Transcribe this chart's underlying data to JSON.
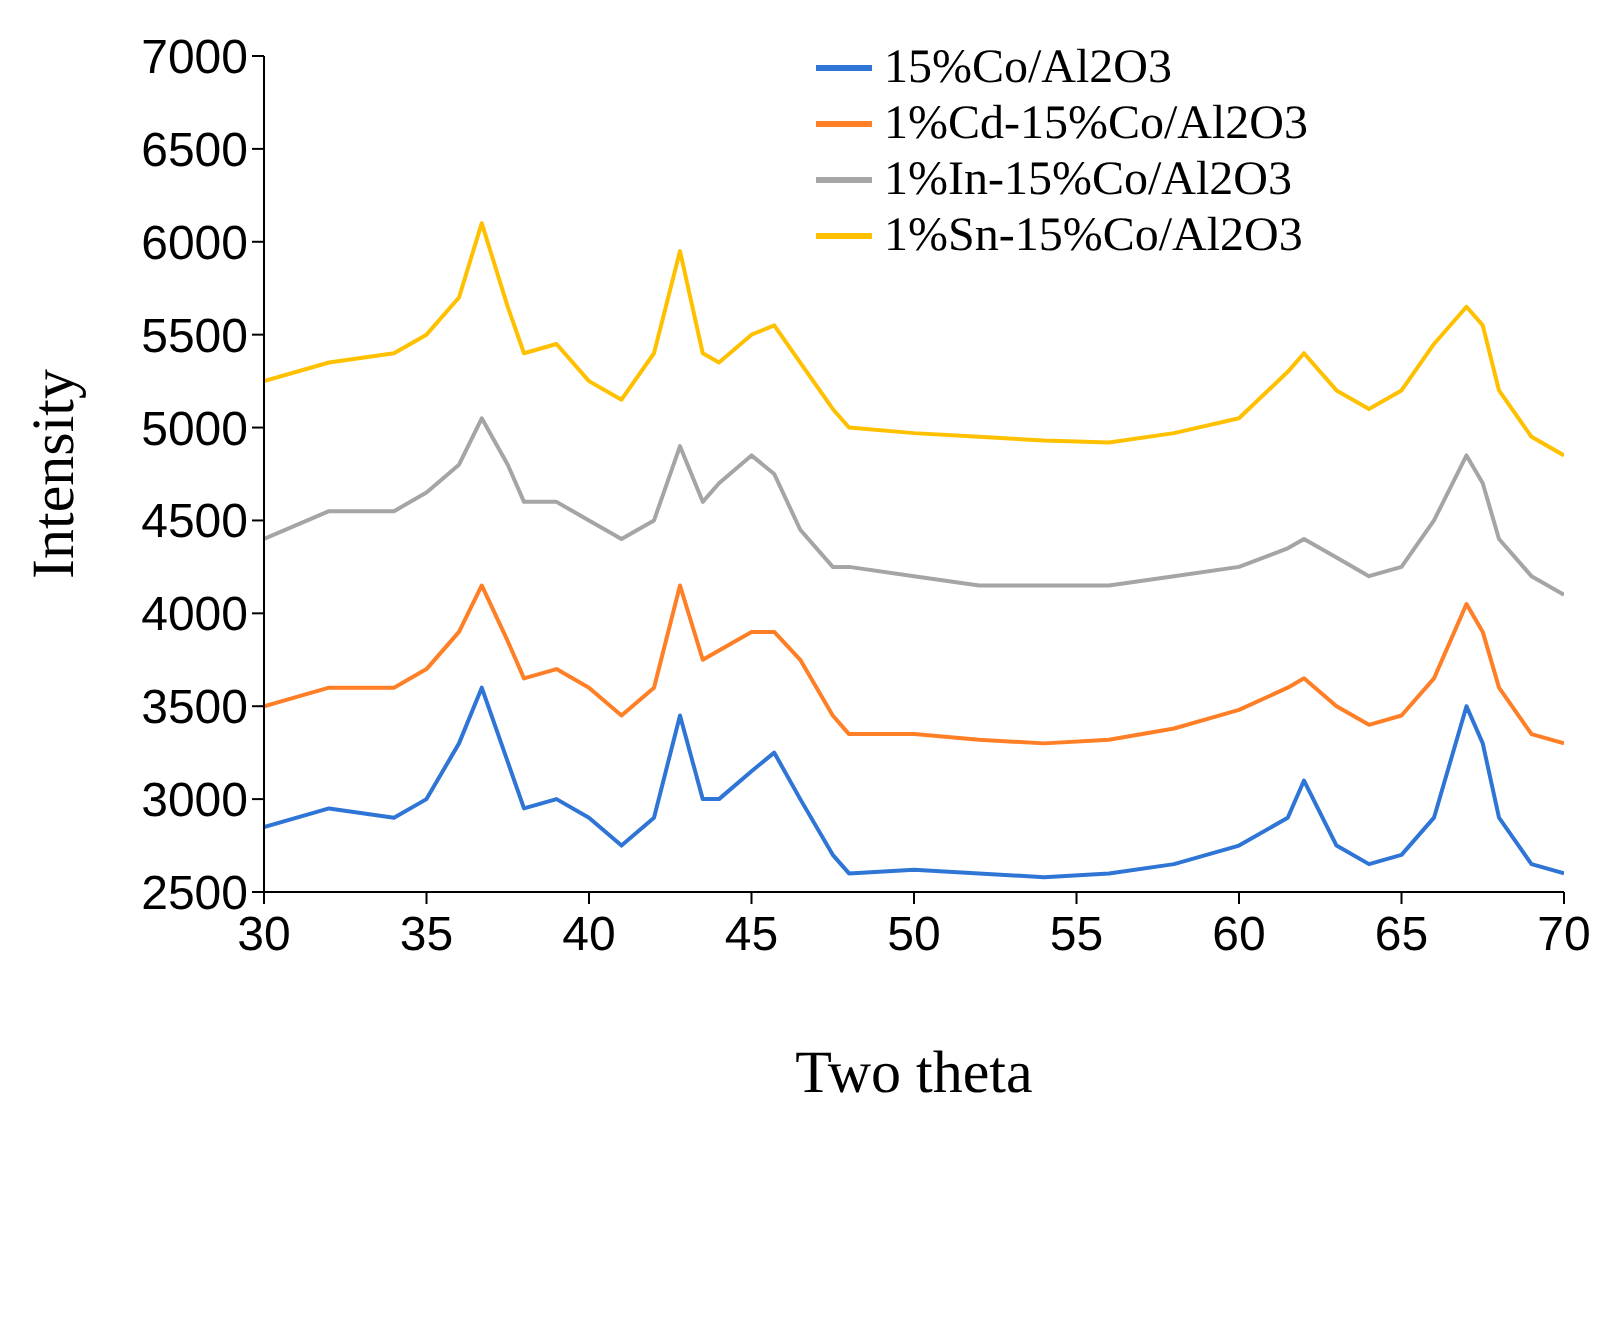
{
  "chart_data": {
    "type": "line",
    "xlabel": "Two theta",
    "ylabel": "Intensity",
    "x": [
      30,
      32,
      34,
      35,
      36,
      36.7,
      37.5,
      38,
      39,
      40,
      41,
      42,
      42.8,
      43.5,
      44,
      45,
      45.7,
      46.5,
      47.5,
      48,
      50,
      52,
      54,
      56,
      58,
      60,
      61.5,
      62,
      63,
      64,
      65,
      66,
      67,
      67.5,
      68,
      69,
      70
    ],
    "series": [
      {
        "name": "15%Co/Al2O3",
        "color": "#2e75d6",
        "values": [
          2850,
          2950,
          2900,
          3000,
          3300,
          3600,
          3200,
          2950,
          3000,
          2900,
          2750,
          2900,
          3450,
          3000,
          3000,
          3150,
          3250,
          3000,
          2700,
          2600,
          2620,
          2600,
          2580,
          2600,
          2650,
          2750,
          2900,
          3100,
          2750,
          2650,
          2700,
          2900,
          3500,
          3300,
          2900,
          2650,
          2600
        ]
      },
      {
        "name": "1%Cd-15%Co/Al2O3",
        "color": "#ff7f27",
        "values": [
          3500,
          3600,
          3600,
          3700,
          3900,
          4150,
          3850,
          3650,
          3700,
          3600,
          3450,
          3600,
          4150,
          3750,
          3800,
          3900,
          3900,
          3750,
          3450,
          3350,
          3350,
          3320,
          3300,
          3320,
          3380,
          3480,
          3600,
          3650,
          3500,
          3400,
          3450,
          3650,
          4050,
          3900,
          3600,
          3350,
          3300
        ]
      },
      {
        "name": "1%In-15%Co/Al2O3",
        "color": "#a5a5a5",
        "values": [
          4400,
          4550,
          4550,
          4650,
          4800,
          5050,
          4800,
          4600,
          4600,
          4500,
          4400,
          4500,
          4900,
          4600,
          4700,
          4850,
          4750,
          4450,
          4250,
          4250,
          4200,
          4150,
          4150,
          4150,
          4200,
          4250,
          4350,
          4400,
          4300,
          4200,
          4250,
          4500,
          4850,
          4700,
          4400,
          4200,
          4100
        ]
      },
      {
        "name": "1%Sn-15%Co/Al2O3",
        "color": "#ffc000",
        "values": [
          5250,
          5350,
          5400,
          5500,
          5700,
          6100,
          5650,
          5400,
          5450,
          5250,
          5150,
          5400,
          5950,
          5400,
          5350,
          5500,
          5550,
          5350,
          5100,
          5000,
          4970,
          4950,
          4930,
          4920,
          4970,
          5050,
          5300,
          5400,
          5200,
          5100,
          5200,
          5450,
          5650,
          5550,
          5200,
          4950,
          4850
        ]
      }
    ],
    "xlim": [
      30,
      70
    ],
    "xticks": [
      30,
      35,
      40,
      45,
      50,
      55,
      60,
      65,
      70
    ],
    "ylim": [
      2500,
      7000
    ],
    "yticks": [
      2500,
      3000,
      3500,
      4000,
      4500,
      5000,
      5500,
      6000,
      6500,
      7000
    ],
    "grid": false,
    "legend": "top right",
    "marker": "none",
    "line_style": "solid"
  }
}
